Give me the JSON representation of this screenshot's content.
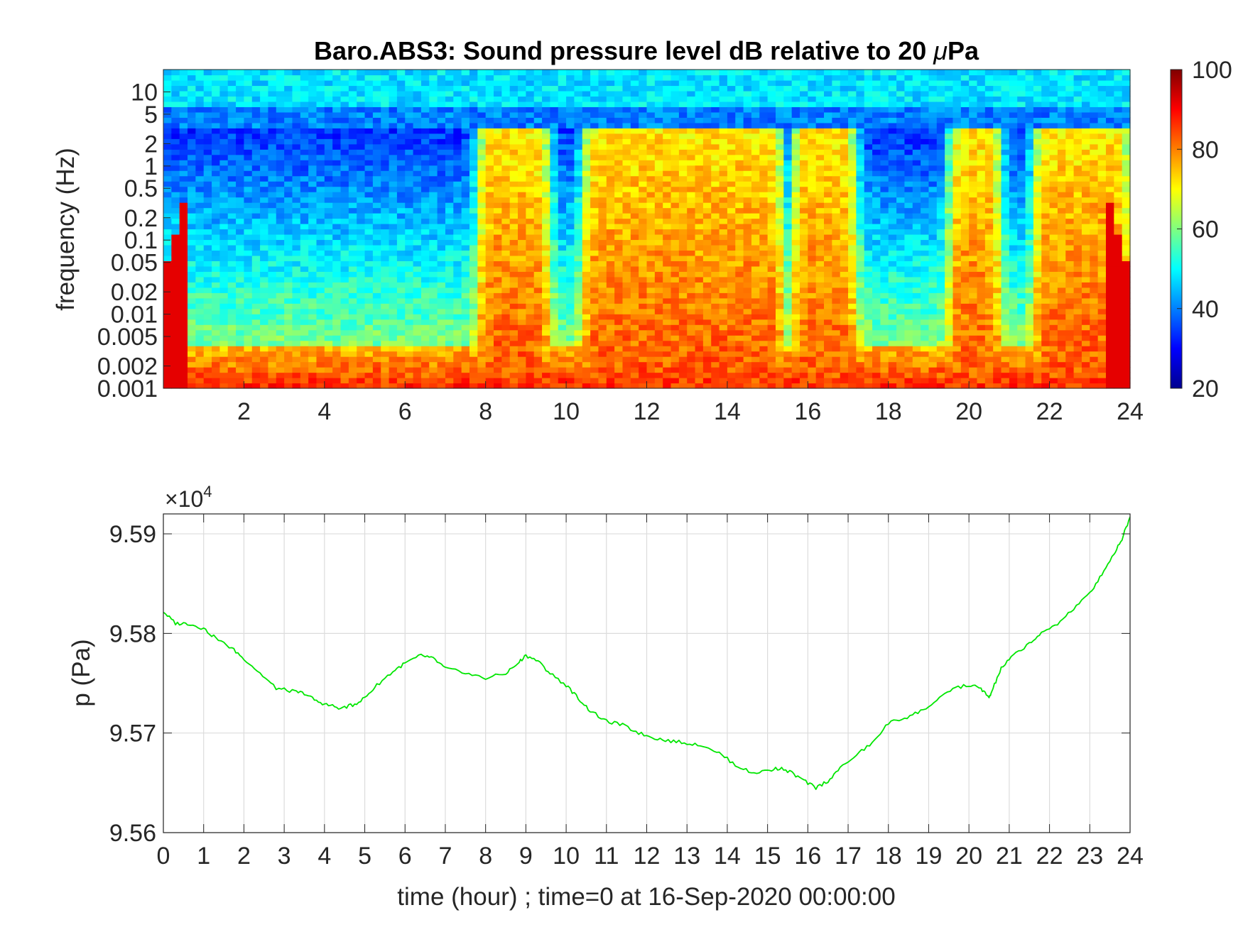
{
  "chart_data": [
    {
      "type": "heatmap",
      "title": "Baro.ABS3: Sound pressure level dB relative to 20 μPa",
      "title_main": "Baro.ABS3: Sound pressure level dB relative to 20 ",
      "title_mu": "μ",
      "title_unit": "Pa",
      "ylabel": "frequency (Hz)",
      "xlabel": "",
      "xlim": [
        0,
        24
      ],
      "x_ticks": [
        "2",
        "4",
        "6",
        "8",
        "10",
        "12",
        "14",
        "16",
        "18",
        "20",
        "22",
        "24"
      ],
      "y_scale": "log",
      "ylim": [
        0.001,
        20
      ],
      "y_ticks": [
        "10",
        "5",
        "2",
        "1",
        "0.5",
        "0.2",
        "0.1",
        "0.05",
        "0.02",
        "0.01",
        "0.005",
        "0.002",
        "0.001"
      ],
      "colormap": "jet",
      "clim": [
        20,
        100
      ],
      "colorbar_ticks": [
        "100",
        "80",
        "60",
        "40",
        "20"
      ],
      "energetic_periods_hours": [
        [
          7.8,
          9.6
        ],
        [
          10.4,
          15.4
        ],
        [
          15.6,
          17.2
        ],
        [
          19.5,
          20.8
        ],
        [
          21.6,
          24
        ]
      ],
      "quiet_periods_hours": [
        [
          0.5,
          7.7
        ],
        [
          9.6,
          10.4
        ],
        [
          17.2,
          19.5
        ],
        [
          20.8,
          21.6
        ]
      ]
    },
    {
      "type": "line",
      "title": "",
      "xlabel": "time (hour) ; time=0 at 16-Sep-2020 00:00:00",
      "ylabel": "p (Pa)",
      "y_multiplier_base": "×10",
      "y_multiplier_exp": "4",
      "xlim": [
        0,
        24
      ],
      "ylim": [
        9.56,
        9.592
      ],
      "x_ticks": [
        "0",
        "1",
        "2",
        "3",
        "4",
        "5",
        "6",
        "7",
        "8",
        "9",
        "10",
        "11",
        "12",
        "13",
        "14",
        "15",
        "16",
        "17",
        "18",
        "19",
        "20",
        "21",
        "22",
        "23",
        "24"
      ],
      "y_ticks": [
        "9.59",
        "9.58",
        "9.57",
        "9.56"
      ],
      "grid": true,
      "line_color": "#00e600",
      "series": [
        {
          "x": [
            0,
            0.3,
            0.6,
            1.0,
            1.3,
            1.7,
            2.0,
            2.4,
            2.8,
            3.2,
            3.5,
            3.8,
            4.1,
            4.4,
            4.7,
            5.0,
            5.3,
            5.7,
            6.0,
            6.4,
            6.7,
            7.0,
            7.5,
            8.0,
            8.5,
            8.8,
            9.0,
            9.3,
            9.6,
            10.0,
            10.3,
            10.6,
            11.0,
            11.4,
            11.8,
            12.2,
            12.6,
            13.0,
            13.4,
            13.8,
            14.2,
            14.6,
            15.0,
            15.3,
            15.6,
            15.9,
            16.2,
            16.5,
            16.8,
            17.2,
            17.6,
            18.0,
            18.4,
            18.8,
            19.2,
            19.6,
            20.0,
            20.3,
            20.5,
            20.6,
            20.8,
            21.1,
            21.5,
            21.8,
            22.2,
            22.6,
            23.0,
            23.3,
            23.6,
            23.8,
            24.0
          ],
          "y": [
            9.5822,
            9.581,
            9.581,
            9.5805,
            9.5795,
            9.5785,
            9.5775,
            9.576,
            9.5745,
            9.5742,
            9.574,
            9.5732,
            9.5728,
            9.5725,
            9.5728,
            9.5735,
            9.5748,
            9.5762,
            9.577,
            9.5778,
            9.5775,
            9.5765,
            9.576,
            9.5755,
            9.576,
            9.577,
            9.5778,
            9.5772,
            9.576,
            9.5748,
            9.5735,
            9.5722,
            9.5712,
            9.5708,
            9.57,
            9.5695,
            9.5692,
            9.569,
            9.5688,
            9.568,
            9.5668,
            9.566,
            9.5662,
            9.5665,
            9.566,
            9.5652,
            9.5645,
            9.5652,
            9.5665,
            9.5678,
            9.569,
            9.571,
            9.5715,
            9.5722,
            9.5732,
            9.5745,
            9.5748,
            9.5745,
            9.5735,
            9.5745,
            9.5765,
            9.5778,
            9.579,
            9.58,
            9.581,
            9.5825,
            9.584,
            9.586,
            9.588,
            9.5895,
            9.5917
          ]
        }
      ]
    }
  ]
}
